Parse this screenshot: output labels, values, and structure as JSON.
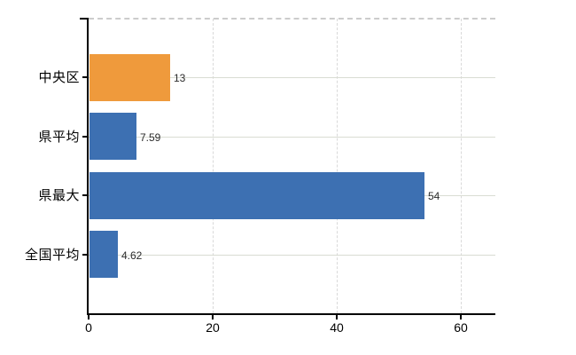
{
  "chart_data": {
    "type": "bar",
    "orientation": "horizontal",
    "title": "",
    "categories": [
      "中央区",
      "県平均",
      "県最大",
      "全国平均"
    ],
    "values": [
      13,
      7.59,
      54,
      4.62
    ],
    "value_labels": [
      "13",
      "7.59",
      "54",
      "4.62"
    ],
    "bar_colors": [
      "#ef9a3c",
      "#3d70b2",
      "#3d70b2",
      "#3d70b2"
    ],
    "x_ticks": [
      0,
      20,
      40,
      60
    ],
    "x_tick_labels": [
      "0",
      "20",
      "40",
      "60"
    ],
    "xlim": [
      0,
      65.5
    ],
    "grid": {
      "horizontal_style": "solid",
      "vertical_style": "dashed",
      "top_border_style": "dashed"
    },
    "legend": "none"
  },
  "colors": {
    "background": "#ffffff",
    "axis": "#000000",
    "h_gridline": "#d9dcd3",
    "v_gridline": "#d9d9d9",
    "top_border": "#cccccc",
    "value_label": "#2b2b2b",
    "category_label": "#000000",
    "x_tick_label": "#000000"
  }
}
